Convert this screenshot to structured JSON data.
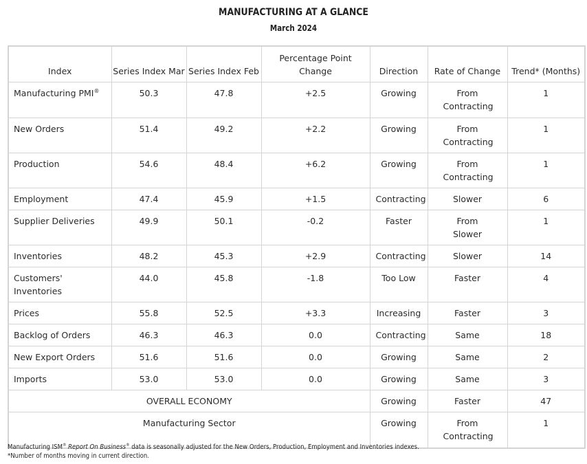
{
  "title": "MANUFACTURING AT A GLANCE",
  "subtitle": "March 2024",
  "headers": {
    "index": "Index",
    "mar": "Series Index Mar",
    "feb": "Series Index Feb",
    "change": "Percentage Point Change",
    "direction": "Direction",
    "rate": "Rate of Change",
    "trend": "Trend* (Months)"
  },
  "rows": [
    {
      "name": "Manufacturing PMI",
      "mark": "®",
      "mar": "50.3",
      "feb": "47.8",
      "change": "+2.5",
      "direction": "Growing",
      "rate": "From Contracting",
      "trend": "1"
    },
    {
      "name": "New Orders",
      "mark": "",
      "mar": "51.4",
      "feb": "49.2",
      "change": "+2.2",
      "direction": "Growing",
      "rate": "From Contracting",
      "trend": "1"
    },
    {
      "name": "Production",
      "mark": "",
      "mar": "54.6",
      "feb": "48.4",
      "change": "+6.2",
      "direction": "Growing",
      "rate": "From Contracting",
      "trend": "1"
    },
    {
      "name": "Employment",
      "mark": "",
      "mar": "47.4",
      "feb": "45.9",
      "change": "+1.5",
      "direction": "Contracting",
      "rate": "Slower",
      "trend": "6"
    },
    {
      "name": "Supplier Deliveries",
      "mark": "",
      "mar": "49.9",
      "feb": "50.1",
      "change": "-0.2",
      "direction": "Faster",
      "rate": "From Slower",
      "trend": "1"
    },
    {
      "name": "Inventories",
      "mark": "",
      "mar": "48.2",
      "feb": "45.3",
      "change": "+2.9",
      "direction": "Contracting",
      "rate": "Slower",
      "trend": "14"
    },
    {
      "name": "Customers' Inventories",
      "mark": "",
      "mar": "44.0",
      "feb": "45.8",
      "change": "-1.8",
      "direction": "Too Low",
      "rate": "Faster",
      "trend": "4"
    },
    {
      "name": "Prices",
      "mark": "",
      "mar": "55.8",
      "feb": "52.5",
      "change": "+3.3",
      "direction": "Increasing",
      "rate": "Faster",
      "trend": "3"
    },
    {
      "name": "Backlog of Orders",
      "mark": "",
      "mar": "46.3",
      "feb": "46.3",
      "change": "0.0",
      "direction": "Contracting",
      "rate": "Same",
      "trend": "18"
    },
    {
      "name": "New Export Orders",
      "mark": "",
      "mar": "51.6",
      "feb": "51.6",
      "change": "0.0",
      "direction": "Growing",
      "rate": "Same",
      "trend": "2"
    },
    {
      "name": "Imports",
      "mark": "",
      "mar": "53.0",
      "feb": "53.0",
      "change": "0.0",
      "direction": "Growing",
      "rate": "Same",
      "trend": "3"
    }
  ],
  "summary_rows": [
    {
      "label": "OVERALL ECONOMY",
      "direction": "Growing",
      "rate": "Faster",
      "trend": "47"
    },
    {
      "label": "Manufacturing Sector",
      "direction": "Growing",
      "rate": "From Contracting",
      "trend": "1"
    }
  ],
  "footnotes": {
    "line1_prefix": "Manufacturing ISM",
    "line1_mark1": "®",
    "line1_italic": "Report On Business",
    "line1_mark2": "®",
    "line1_suffix": " data is seasonally adjusted for the New Orders, Production, Employment and Inventories indexes.",
    "line2": "*Number of months moving in current direction."
  },
  "colors": {
    "border": "#d4d4d4",
    "text": "#2b2b2b"
  }
}
